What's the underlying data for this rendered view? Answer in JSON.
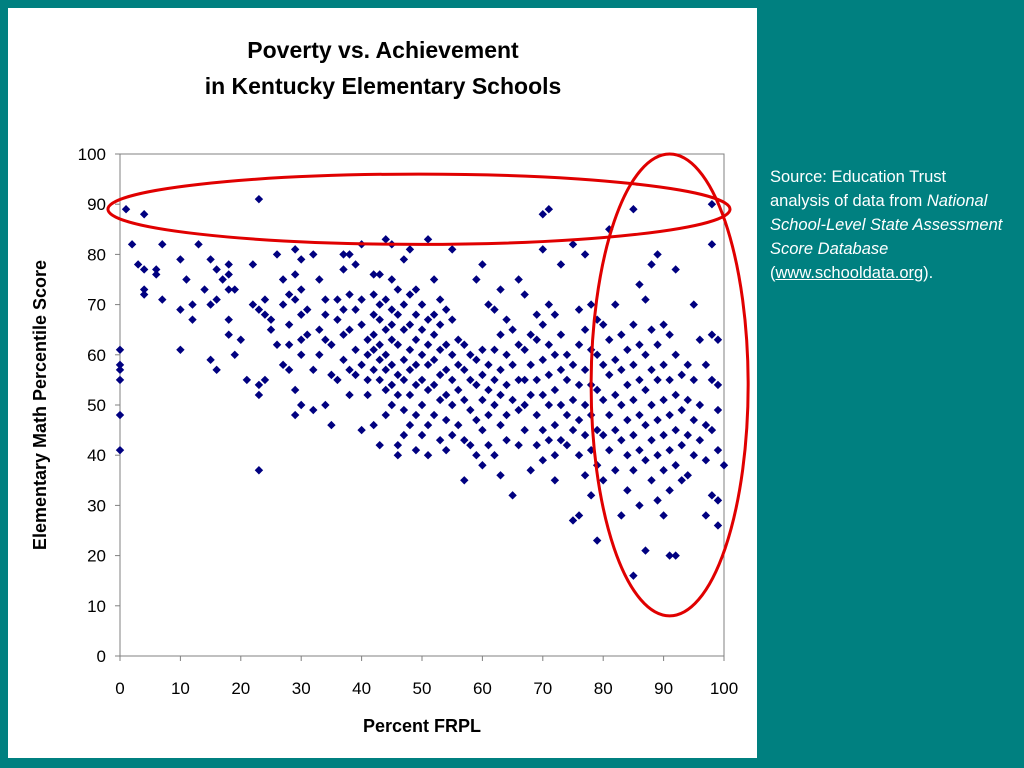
{
  "colors": {
    "background": "#008080",
    "panel": "#ffffff",
    "marker": "#000080",
    "highlight_ellipse": "#e00000"
  },
  "source_note": {
    "label": "Source:",
    "line1": "Education Trust analysis of data from",
    "italic": "National School-Level State Assessment Score Database",
    "open_paren": "(",
    "link_text": "www.schooldata.org",
    "close": ")."
  },
  "chart_data": {
    "type": "scatter",
    "title": "Poverty vs. Achievement",
    "subtitle": "in Kentucky Elementary Schools",
    "xlabel": "Percent FRPL",
    "ylabel": "Elementary Math Percentile Score",
    "xlim": [
      0,
      100
    ],
    "ylim": [
      0,
      100
    ],
    "xticks": [
      "0",
      "10",
      "20",
      "30",
      "40",
      "50",
      "60",
      "70",
      "80",
      "90",
      "100"
    ],
    "yticks": [
      "0",
      "10",
      "20",
      "30",
      "40",
      "50",
      "60",
      "70",
      "80",
      "90",
      "100"
    ],
    "grid": false,
    "legend": "none",
    "marker": "diamond",
    "highlights": [
      {
        "shape": "ellipse",
        "x_range": [
          -2,
          101
        ],
        "y_range": [
          82,
          96
        ]
      },
      {
        "shape": "ellipse",
        "x_range": [
          78,
          104
        ],
        "y_range": [
          8,
          100
        ]
      }
    ],
    "points": [
      [
        0,
        61
      ],
      [
        0,
        58
      ],
      [
        0,
        57
      ],
      [
        0,
        55
      ],
      [
        0,
        48
      ],
      [
        0,
        41
      ],
      [
        1,
        89
      ],
      [
        2,
        82
      ],
      [
        3,
        78
      ],
      [
        4,
        88
      ],
      [
        4,
        77
      ],
      [
        4,
        73
      ],
      [
        4,
        72
      ],
      [
        6,
        77
      ],
      [
        6,
        76
      ],
      [
        7,
        82
      ],
      [
        7,
        71
      ],
      [
        10,
        79
      ],
      [
        10,
        69
      ],
      [
        10,
        61
      ],
      [
        11,
        75
      ],
      [
        12,
        70
      ],
      [
        12,
        67
      ],
      [
        13,
        82
      ],
      [
        14,
        73
      ],
      [
        15,
        79
      ],
      [
        15,
        70
      ],
      [
        15,
        59
      ],
      [
        16,
        77
      ],
      [
        16,
        71
      ],
      [
        16,
        57
      ],
      [
        17,
        75
      ],
      [
        18,
        78
      ],
      [
        18,
        76
      ],
      [
        18,
        73
      ],
      [
        18,
        67
      ],
      [
        18,
        64
      ],
      [
        19,
        60
      ],
      [
        19,
        73
      ],
      [
        20,
        63
      ],
      [
        21,
        55
      ],
      [
        22,
        78
      ],
      [
        22,
        70
      ],
      [
        23,
        91
      ],
      [
        23,
        69
      ],
      [
        23,
        54
      ],
      [
        23,
        52
      ],
      [
        23,
        37
      ],
      [
        24,
        71
      ],
      [
        24,
        68
      ],
      [
        24,
        55
      ],
      [
        25,
        67
      ],
      [
        25,
        65
      ],
      [
        26,
        80
      ],
      [
        26,
        62
      ],
      [
        27,
        75
      ],
      [
        27,
        70
      ],
      [
        27,
        58
      ],
      [
        28,
        72
      ],
      [
        28,
        66
      ],
      [
        28,
        62
      ],
      [
        28,
        57
      ],
      [
        29,
        81
      ],
      [
        29,
        76
      ],
      [
        29,
        71
      ],
      [
        29,
        53
      ],
      [
        29,
        48
      ],
      [
        30,
        79
      ],
      [
        30,
        73
      ],
      [
        30,
        68
      ],
      [
        30,
        63
      ],
      [
        30,
        60
      ],
      [
        30,
        50
      ],
      [
        31,
        69
      ],
      [
        31,
        64
      ],
      [
        32,
        80
      ],
      [
        32,
        57
      ],
      [
        32,
        49
      ],
      [
        33,
        75
      ],
      [
        33,
        65
      ],
      [
        33,
        60
      ],
      [
        34,
        71
      ],
      [
        34,
        68
      ],
      [
        34,
        63
      ],
      [
        34,
        50
      ],
      [
        35,
        46
      ],
      [
        35,
        56
      ],
      [
        35,
        62
      ],
      [
        36,
        67
      ],
      [
        36,
        71
      ],
      [
        36,
        55
      ],
      [
        37,
        80
      ],
      [
        37,
        77
      ],
      [
        37,
        69
      ],
      [
        37,
        64
      ],
      [
        37,
        59
      ],
      [
        38,
        80
      ],
      [
        38,
        72
      ],
      [
        38,
        65
      ],
      [
        38,
        57
      ],
      [
        38,
        52
      ],
      [
        39,
        78
      ],
      [
        39,
        69
      ],
      [
        39,
        61
      ],
      [
        39,
        56
      ],
      [
        40,
        82
      ],
      [
        40,
        71
      ],
      [
        40,
        66
      ],
      [
        40,
        58
      ],
      [
        40,
        45
      ],
      [
        41,
        63
      ],
      [
        41,
        60
      ],
      [
        41,
        55
      ],
      [
        41,
        52
      ],
      [
        42,
        76
      ],
      [
        42,
        72
      ],
      [
        42,
        68
      ],
      [
        42,
        64
      ],
      [
        42,
        61
      ],
      [
        42,
        57
      ],
      [
        42,
        46
      ],
      [
        43,
        76
      ],
      [
        43,
        70
      ],
      [
        43,
        67
      ],
      [
        43,
        62
      ],
      [
        43,
        59
      ],
      [
        43,
        55
      ],
      [
        43,
        42
      ],
      [
        44,
        83
      ],
      [
        44,
        71
      ],
      [
        44,
        65
      ],
      [
        44,
        60
      ],
      [
        44,
        57
      ],
      [
        44,
        53
      ],
      [
        44,
        48
      ],
      [
        45,
        82
      ],
      [
        45,
        75
      ],
      [
        45,
        69
      ],
      [
        45,
        66
      ],
      [
        45,
        63
      ],
      [
        45,
        58
      ],
      [
        45,
        54
      ],
      [
        45,
        50
      ],
      [
        46,
        73
      ],
      [
        46,
        68
      ],
      [
        46,
        62
      ],
      [
        46,
        56
      ],
      [
        46,
        52
      ],
      [
        46,
        42
      ],
      [
        46,
        40
      ],
      [
        47,
        79
      ],
      [
        47,
        70
      ],
      [
        47,
        65
      ],
      [
        47,
        59
      ],
      [
        47,
        55
      ],
      [
        47,
        49
      ],
      [
        47,
        44
      ],
      [
        48,
        81
      ],
      [
        48,
        72
      ],
      [
        48,
        66
      ],
      [
        48,
        61
      ],
      [
        48,
        57
      ],
      [
        48,
        52
      ],
      [
        48,
        46
      ],
      [
        49,
        73
      ],
      [
        49,
        68
      ],
      [
        49,
        63
      ],
      [
        49,
        58
      ],
      [
        49,
        54
      ],
      [
        49,
        48
      ],
      [
        49,
        41
      ],
      [
        50,
        70
      ],
      [
        50,
        65
      ],
      [
        50,
        60
      ],
      [
        50,
        55
      ],
      [
        50,
        50
      ],
      [
        50,
        44
      ],
      [
        51,
        83
      ],
      [
        51,
        67
      ],
      [
        51,
        62
      ],
      [
        51,
        58
      ],
      [
        51,
        53
      ],
      [
        51,
        46
      ],
      [
        51,
        40
      ],
      [
        52,
        75
      ],
      [
        52,
        68
      ],
      [
        52,
        64
      ],
      [
        52,
        59
      ],
      [
        52,
        54
      ],
      [
        52,
        48
      ],
      [
        53,
        71
      ],
      [
        53,
        66
      ],
      [
        53,
        61
      ],
      [
        53,
        56
      ],
      [
        53,
        51
      ],
      [
        53,
        43
      ],
      [
        54,
        69
      ],
      [
        54,
        62
      ],
      [
        54,
        57
      ],
      [
        54,
        52
      ],
      [
        54,
        47
      ],
      [
        54,
        41
      ],
      [
        55,
        81
      ],
      [
        55,
        67
      ],
      [
        55,
        60
      ],
      [
        55,
        55
      ],
      [
        55,
        50
      ],
      [
        55,
        44
      ],
      [
        56,
        63
      ],
      [
        56,
        58
      ],
      [
        56,
        53
      ],
      [
        56,
        46
      ],
      [
        57,
        62
      ],
      [
        57,
        57
      ],
      [
        57,
        51
      ],
      [
        57,
        43
      ],
      [
        57,
        35
      ],
      [
        58,
        60
      ],
      [
        58,
        55
      ],
      [
        58,
        49
      ],
      [
        58,
        42
      ],
      [
        59,
        75
      ],
      [
        59,
        59
      ],
      [
        59,
        54
      ],
      [
        59,
        47
      ],
      [
        59,
        40
      ],
      [
        60,
        78
      ],
      [
        60,
        61
      ],
      [
        60,
        56
      ],
      [
        60,
        51
      ],
      [
        60,
        45
      ],
      [
        60,
        38
      ],
      [
        61,
        70
      ],
      [
        61,
        58
      ],
      [
        61,
        53
      ],
      [
        61,
        48
      ],
      [
        61,
        42
      ],
      [
        62,
        69
      ],
      [
        62,
        61
      ],
      [
        62,
        55
      ],
      [
        62,
        50
      ],
      [
        62,
        40
      ],
      [
        63,
        73
      ],
      [
        63,
        64
      ],
      [
        63,
        57
      ],
      [
        63,
        52
      ],
      [
        63,
        46
      ],
      [
        63,
        36
      ],
      [
        64,
        67
      ],
      [
        64,
        60
      ],
      [
        64,
        54
      ],
      [
        64,
        48
      ],
      [
        64,
        43
      ],
      [
        65,
        65
      ],
      [
        65,
        58
      ],
      [
        65,
        51
      ],
      [
        65,
        32
      ],
      [
        66,
        75
      ],
      [
        66,
        62
      ],
      [
        66,
        55
      ],
      [
        66,
        49
      ],
      [
        66,
        42
      ],
      [
        67,
        72
      ],
      [
        67,
        61
      ],
      [
        67,
        55
      ],
      [
        67,
        50
      ],
      [
        67,
        45
      ],
      [
        68,
        64
      ],
      [
        68,
        58
      ],
      [
        68,
        52
      ],
      [
        68,
        37
      ],
      [
        69,
        68
      ],
      [
        69,
        63
      ],
      [
        69,
        55
      ],
      [
        69,
        48
      ],
      [
        69,
        42
      ],
      [
        70,
        88
      ],
      [
        70,
        81
      ],
      [
        70,
        66
      ],
      [
        70,
        59
      ],
      [
        70,
        52
      ],
      [
        70,
        45
      ],
      [
        70,
        39
      ],
      [
        71,
        89
      ],
      [
        71,
        70
      ],
      [
        71,
        62
      ],
      [
        71,
        56
      ],
      [
        71,
        50
      ],
      [
        71,
        43
      ],
      [
        72,
        68
      ],
      [
        72,
        60
      ],
      [
        72,
        53
      ],
      [
        72,
        46
      ],
      [
        72,
        40
      ],
      [
        72,
        35
      ],
      [
        73,
        78
      ],
      [
        73,
        64
      ],
      [
        73,
        57
      ],
      [
        73,
        50
      ],
      [
        73,
        43
      ],
      [
        74,
        60
      ],
      [
        74,
        55
      ],
      [
        74,
        48
      ],
      [
        74,
        42
      ],
      [
        75,
        82
      ],
      [
        75,
        58
      ],
      [
        75,
        51
      ],
      [
        75,
        45
      ],
      [
        75,
        27
      ],
      [
        76,
        69
      ],
      [
        76,
        62
      ],
      [
        76,
        54
      ],
      [
        76,
        47
      ],
      [
        76,
        40
      ],
      [
        76,
        28
      ],
      [
        77,
        80
      ],
      [
        77,
        65
      ],
      [
        77,
        57
      ],
      [
        77,
        50
      ],
      [
        77,
        44
      ],
      [
        77,
        36
      ],
      [
        78,
        70
      ],
      [
        78,
        61
      ],
      [
        78,
        54
      ],
      [
        78,
        48
      ],
      [
        78,
        41
      ],
      [
        78,
        32
      ],
      [
        79,
        67
      ],
      [
        79,
        60
      ],
      [
        79,
        53
      ],
      [
        79,
        45
      ],
      [
        79,
        38
      ],
      [
        79,
        23
      ],
      [
        80,
        66
      ],
      [
        80,
        58
      ],
      [
        80,
        51
      ],
      [
        80,
        44
      ],
      [
        80,
        35
      ],
      [
        81,
        85
      ],
      [
        81,
        63
      ],
      [
        81,
        56
      ],
      [
        81,
        48
      ],
      [
        81,
        41
      ],
      [
        82,
        70
      ],
      [
        82,
        59
      ],
      [
        82,
        52
      ],
      [
        82,
        45
      ],
      [
        82,
        37
      ],
      [
        83,
        64
      ],
      [
        83,
        57
      ],
      [
        83,
        50
      ],
      [
        83,
        43
      ],
      [
        83,
        28
      ],
      [
        84,
        61
      ],
      [
        84,
        54
      ],
      [
        84,
        47
      ],
      [
        84,
        40
      ],
      [
        84,
        33
      ],
      [
        85,
        89
      ],
      [
        85,
        66
      ],
      [
        85,
        58
      ],
      [
        85,
        51
      ],
      [
        85,
        44
      ],
      [
        85,
        37
      ],
      [
        85,
        16
      ],
      [
        86,
        74
      ],
      [
        86,
        62
      ],
      [
        86,
        55
      ],
      [
        86,
        48
      ],
      [
        86,
        41
      ],
      [
        86,
        30
      ],
      [
        87,
        71
      ],
      [
        87,
        60
      ],
      [
        87,
        53
      ],
      [
        87,
        46
      ],
      [
        87,
        39
      ],
      [
        87,
        21
      ],
      [
        88,
        78
      ],
      [
        88,
        65
      ],
      [
        88,
        57
      ],
      [
        88,
        50
      ],
      [
        88,
        43
      ],
      [
        88,
        35
      ],
      [
        89,
        80
      ],
      [
        89,
        62
      ],
      [
        89,
        55
      ],
      [
        89,
        47
      ],
      [
        89,
        40
      ],
      [
        89,
        31
      ],
      [
        90,
        66
      ],
      [
        90,
        58
      ],
      [
        90,
        51
      ],
      [
        90,
        44
      ],
      [
        90,
        37
      ],
      [
        90,
        28
      ],
      [
        91,
        64
      ],
      [
        91,
        55
      ],
      [
        91,
        48
      ],
      [
        91,
        41
      ],
      [
        91,
        33
      ],
      [
        91,
        20
      ],
      [
        92,
        77
      ],
      [
        92,
        60
      ],
      [
        92,
        52
      ],
      [
        92,
        45
      ],
      [
        92,
        38
      ],
      [
        92,
        20
      ],
      [
        93,
        56
      ],
      [
        93,
        49
      ],
      [
        93,
        42
      ],
      [
        93,
        35
      ],
      [
        94,
        58
      ],
      [
        94,
        51
      ],
      [
        94,
        44
      ],
      [
        94,
        36
      ],
      [
        95,
        70
      ],
      [
        95,
        55
      ],
      [
        95,
        47
      ],
      [
        95,
        40
      ],
      [
        96,
        63
      ],
      [
        96,
        50
      ],
      [
        96,
        43
      ],
      [
        97,
        58
      ],
      [
        97,
        46
      ],
      [
        97,
        39
      ],
      [
        97,
        28
      ],
      [
        98,
        90
      ],
      [
        98,
        82
      ],
      [
        98,
        64
      ],
      [
        98,
        55
      ],
      [
        98,
        45
      ],
      [
        98,
        32
      ],
      [
        99,
        63
      ],
      [
        99,
        54
      ],
      [
        99,
        49
      ],
      [
        99,
        41
      ],
      [
        99,
        31
      ],
      [
        99,
        26
      ],
      [
        100,
        38
      ]
    ]
  }
}
